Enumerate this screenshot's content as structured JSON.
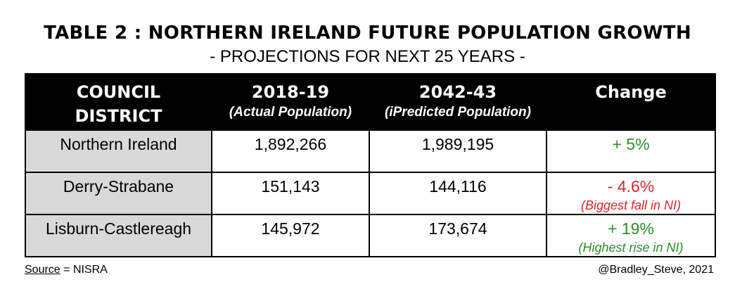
{
  "title": "TABLE 2 : NORTHERN IRELAND FUTURE POPULATION GROWTH",
  "subtitle": "- PROJECTIONS FOR NEXT 25 YEARS -",
  "headers": {
    "district_line1": "COUNCIL",
    "district_line2": "DISTRICT",
    "year1": "2018-19",
    "year1_sub": "(Actual Population)",
    "year2": "2042-43",
    "year2_sub": "(iPredicted Population)",
    "change": "Change"
  },
  "rows": [
    {
      "district": "Northern Ireland",
      "pop_2018": "1,892,266",
      "pop_2042": "1,989,195",
      "change": "+ 5%",
      "note": "",
      "tone": "green"
    },
    {
      "district": "Derry-Strabane",
      "pop_2018": "151,143",
      "pop_2042": "144,116",
      "change": "- 4.6%",
      "note": "(Biggest fall in NI)",
      "tone": "red"
    },
    {
      "district": "Lisburn-Castlereagh",
      "pop_2018": "145,972",
      "pop_2042": "173,674",
      "change": "+ 19%",
      "note": "(Highest rise in NI)",
      "tone": "green"
    }
  ],
  "footer": {
    "source_label": "Source",
    "source_value": " = NISRA",
    "credit": "@Bradley_Steve, 2021"
  },
  "colors": {
    "positive": "#2e8b2e",
    "negative": "#d9262b",
    "district_cell": "#d9d9d9",
    "header_bg": "#000000"
  }
}
